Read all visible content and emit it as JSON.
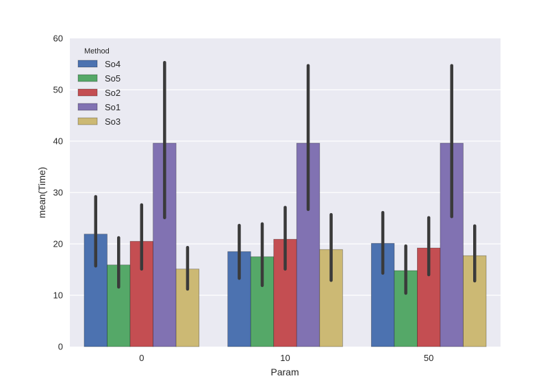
{
  "chart_data": {
    "type": "bar",
    "title": "",
    "xlabel": "Param",
    "ylabel": "mean(Time)",
    "ylim": [
      0,
      60
    ],
    "yticks": [
      0,
      10,
      20,
      30,
      40,
      50,
      60
    ],
    "grid": true,
    "categories": [
      "0",
      "10",
      "50"
    ],
    "legend": {
      "title": "Method",
      "placement": "top-left"
    },
    "series": [
      {
        "name": "So4",
        "color": "#4C72B0",
        "values": [
          21.9,
          18.5,
          20.1
        ],
        "ci_low": [
          15.7,
          13.3,
          14.3
        ],
        "ci_high": [
          29.2,
          23.6,
          26.1
        ]
      },
      {
        "name": "So5",
        "color": "#55A868",
        "values": [
          15.9,
          17.5,
          14.8
        ],
        "ci_low": [
          11.6,
          11.9,
          10.4
        ],
        "ci_high": [
          21.2,
          23.9,
          19.6
        ]
      },
      {
        "name": "So2",
        "color": "#C44E52",
        "values": [
          20.5,
          20.9,
          19.2
        ],
        "ci_low": [
          15.1,
          15.1,
          14.0
        ],
        "ci_high": [
          27.6,
          27.1,
          25.1
        ]
      },
      {
        "name": "So1",
        "color": "#8172B2",
        "values": [
          39.6,
          39.6,
          39.6
        ],
        "ci_low": [
          25.1,
          26.7,
          25.3
        ],
        "ci_high": [
          55.3,
          54.7,
          54.7
        ]
      },
      {
        "name": "So3",
        "color": "#CCB974",
        "values": [
          15.1,
          18.9,
          17.7
        ],
        "ci_low": [
          11.2,
          12.9,
          12.8
        ],
        "ci_high": [
          19.3,
          25.7,
          23.5
        ]
      }
    ],
    "errorbar_color": "#3A3A3A",
    "background_color": "#EAEAF2"
  }
}
